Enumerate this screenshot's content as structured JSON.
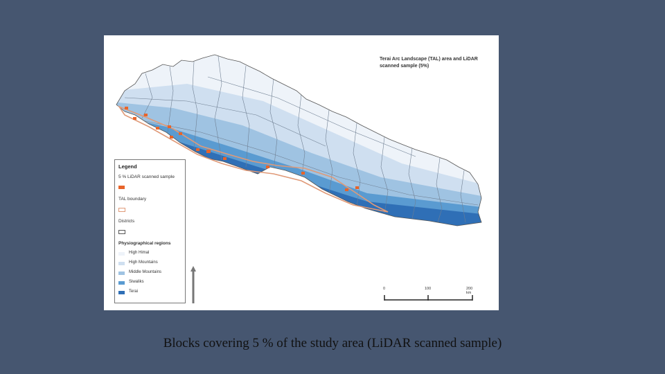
{
  "map": {
    "title": "Terai Arc Landscape (TAL) area and LiDAR scanned sample (5%)",
    "legend": {
      "heading": "Legend",
      "sample_label": "5 % LiDAR scanned sample",
      "boundary_label": "TAL boundary",
      "districts_label": "Districts",
      "regions_heading": "Physiographical regions",
      "regions": [
        {
          "label": "High Himal",
          "color": "#eef3f9"
        },
        {
          "label": "High Mountains",
          "color": "#cfdff0"
        },
        {
          "label": "Middle Mountains",
          "color": "#9fc3e2"
        },
        {
          "label": "Siwaliks",
          "color": "#5a9bd1"
        },
        {
          "label": "Terai",
          "color": "#2f6fb6"
        }
      ],
      "sample_color": "#e8642a",
      "boundary_color": "#e09a78"
    },
    "scale": {
      "ticks": [
        "0",
        "100",
        "200 km"
      ]
    },
    "north_arrow": "N"
  },
  "caption": "Blocks covering 5 % of the study area (LiDAR scanned sample)"
}
